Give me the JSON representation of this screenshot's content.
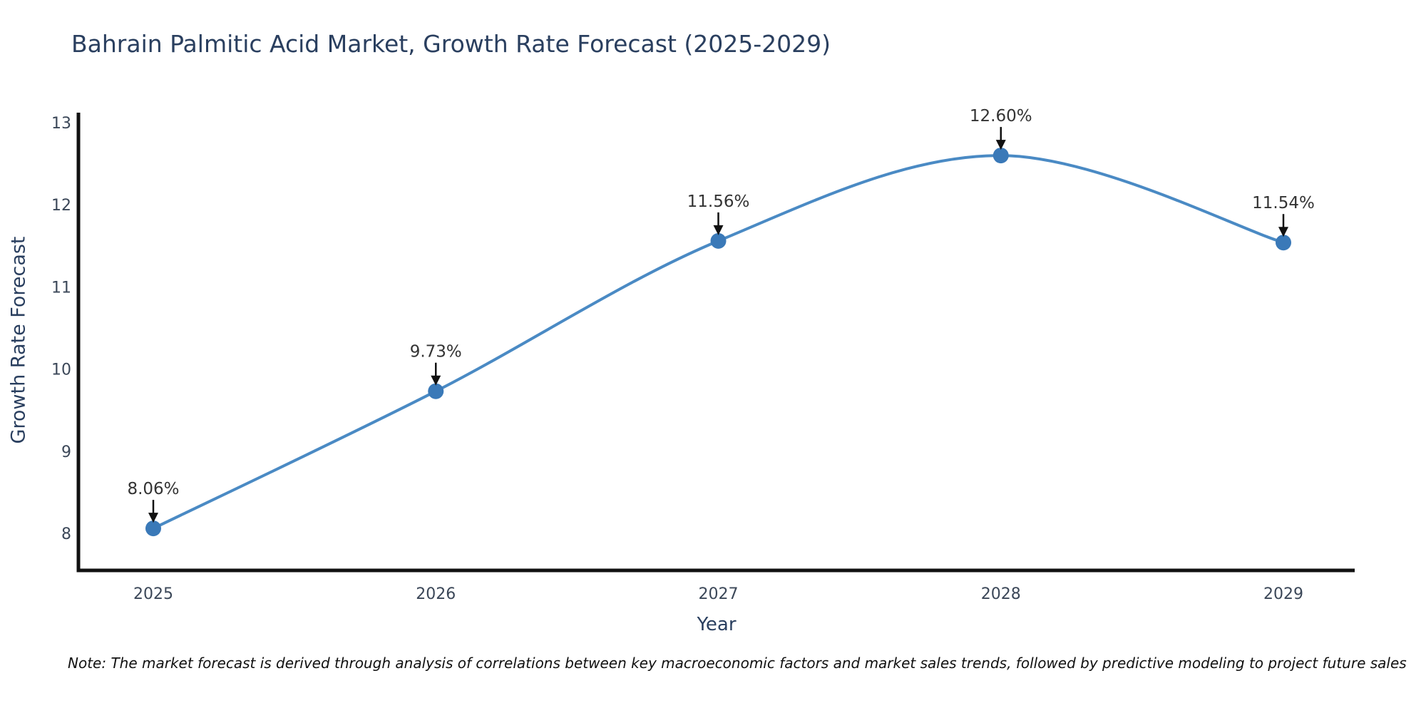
{
  "figure": {
    "note": "Note: The market forecast is derived through analysis of correlations between key macroeconomic factors and market sales trends, followed by predictive modeling to project future sales"
  },
  "chart_data": {
    "type": "line",
    "title": "Bahrain Palmitic Acid Market, Growth Rate Forecast (2025-2029)",
    "xlabel": "Year",
    "ylabel": "Growth Rate Forecast",
    "x": [
      "2025",
      "2026",
      "2027",
      "2028",
      "2029"
    ],
    "series": [
      {
        "name": "Growth Rate Forecast",
        "values": [
          8.06,
          9.73,
          11.56,
          12.6,
          11.54
        ]
      }
    ],
    "point_labels": [
      "8.06%",
      "9.73%",
      "11.56%",
      "12.60%",
      "11.54%"
    ],
    "yticks": [
      8,
      9,
      10,
      11,
      12,
      13
    ],
    "ylim": [
      7.55,
      13.15
    ],
    "grid": false,
    "legend": false,
    "line_style": "smooth-spline",
    "annotations": "value labels with downward arrows above each point",
    "colors": {
      "line": "#4a8ac4",
      "marker": "#3a79b8",
      "axis": "#111111",
      "title_text": "#2a3f5f",
      "tick_text": "#3b4758",
      "annotation_text": "#333333",
      "arrow": "#111111",
      "background": "#ffffff"
    }
  }
}
